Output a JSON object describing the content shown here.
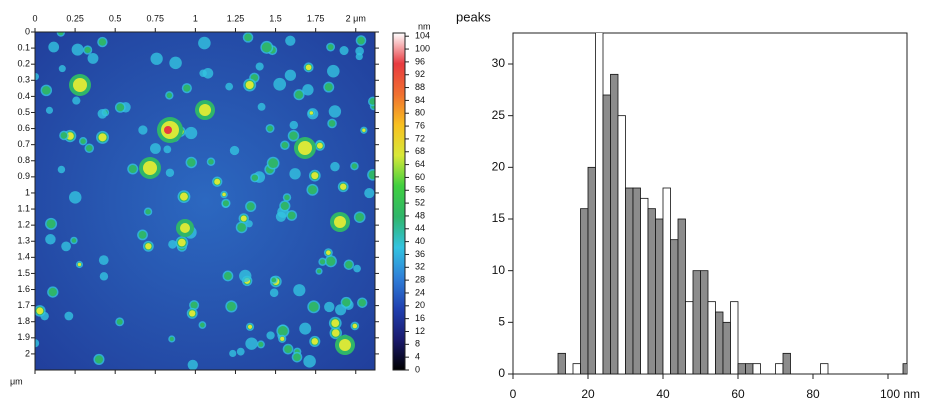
{
  "chart_data": [
    {
      "type": "heatmap",
      "x_unit_label": "μm",
      "colorbar_label": "nm",
      "xlim": [
        0,
        2.12
      ],
      "xticks": [
        0,
        0.25,
        0.5,
        0.75,
        1,
        1.25,
        1.5,
        1.75,
        {
          "value": 2,
          "label": "2 μm"
        }
      ],
      "ylim": [
        0,
        2.1
      ],
      "yticks": [
        0,
        0.1,
        0.2,
        0.3,
        0.4,
        0.5,
        0.6,
        0.7,
        0.8,
        0.9,
        1,
        1.1,
        1.2,
        1.3,
        1.4,
        1.5,
        1.6,
        1.7,
        1.8,
        1.9,
        2
      ],
      "clim": [
        0,
        105
      ],
      "cticks": [
        0,
        4,
        8,
        12,
        16,
        20,
        24,
        28,
        32,
        36,
        40,
        44,
        48,
        52,
        56,
        60,
        64,
        68,
        72,
        76,
        80,
        84,
        88,
        92,
        96,
        100,
        104
      ],
      "colormap": [
        "#000000",
        "#1a1a6e",
        "#2040b0",
        "#2f7fd8",
        "#33c3e0",
        "#2fb56a",
        "#3fcf3f",
        "#d8e838",
        "#f8c020",
        "#f07030",
        "#e83a40",
        "#ffffff"
      ]
    },
    {
      "type": "histogram",
      "ylabel": "peaks",
      "bins": [
        12,
        14,
        16,
        18,
        20,
        22,
        24,
        26,
        28,
        30,
        32,
        34,
        36,
        38,
        40,
        42,
        44,
        46,
        48,
        50,
        52,
        54,
        56,
        58,
        60,
        62,
        64,
        66,
        68,
        70,
        72,
        74,
        76,
        78,
        80,
        82,
        84,
        86,
        88,
        90,
        92,
        94,
        96,
        98,
        100,
        102,
        104,
        106
      ],
      "counts": [
        2,
        0,
        1,
        16,
        20,
        34,
        27,
        29,
        25,
        18,
        18,
        17,
        16,
        15,
        18,
        13,
        15,
        7,
        10,
        10,
        7,
        6,
        5,
        7,
        1,
        1,
        1,
        0,
        0,
        1,
        2,
        0,
        0,
        0,
        0,
        1,
        0,
        0,
        0,
        0,
        0,
        0,
        0,
        0,
        0,
        0,
        1
      ],
      "color": "#8c8c8c",
      "xlim": [
        0,
        105
      ],
      "xticks": [
        0,
        20,
        40,
        60,
        80,
        {
          "value": 100,
          "label": "100 nm"
        }
      ],
      "ylim": [
        0,
        33
      ],
      "yticks": [
        0,
        5,
        10,
        15,
        20,
        25,
        30
      ]
    }
  ]
}
